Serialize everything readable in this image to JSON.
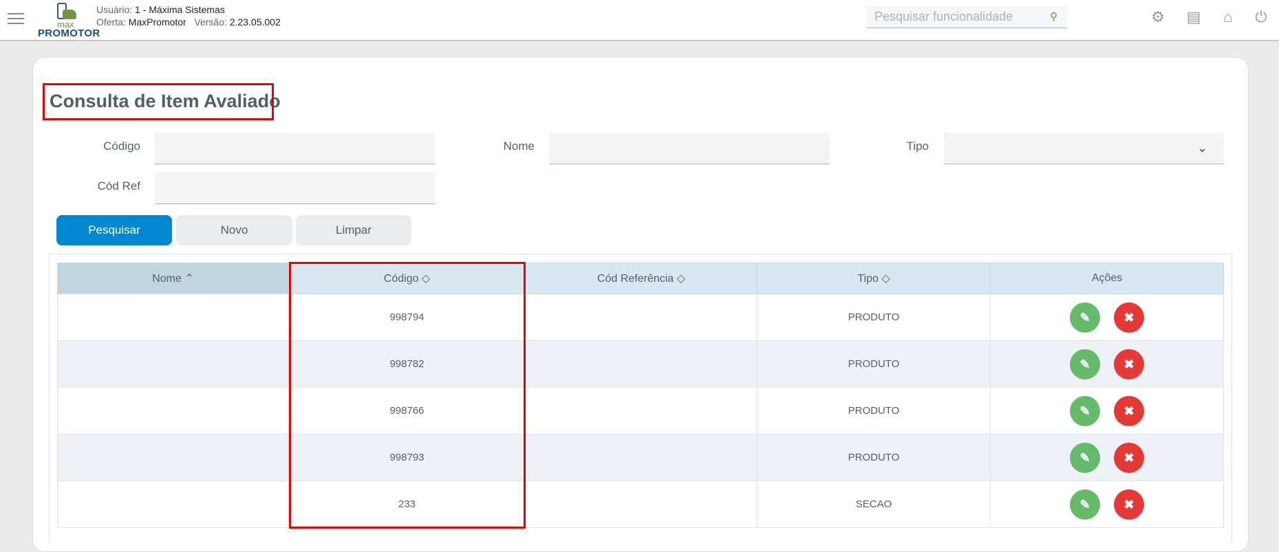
{
  "header": {
    "user_label": "Usuário:",
    "user_value": "1 - Máxima Sistemas",
    "offer_label": "Oferta:",
    "offer_value": "MaxPromotor",
    "version_label": "Versão:",
    "version_value": "2.23.05.002",
    "logo_top": "max",
    "logo_bottom": "PROMOTOR",
    "search_placeholder": "Pesquisar funcionalidade"
  },
  "page": {
    "title": "Consulta de Item Avaliado"
  },
  "form": {
    "codigo_label": "Código",
    "nome_label": "Nome",
    "tipo_label": "Tipo",
    "codref_label": "Cód Ref",
    "codigo_value": "",
    "nome_value": "",
    "tipo_value": "",
    "codref_value": ""
  },
  "buttons": {
    "search": "Pesquisar",
    "new": "Novo",
    "clear": "Limpar"
  },
  "table": {
    "columns": [
      "Nome",
      "Código",
      "Cód Referência",
      "Tipo",
      "Ações"
    ],
    "sort_column": "Nome",
    "sort_direction": "asc",
    "rows": [
      {
        "nome": "",
        "codigo": "998794",
        "codref": "",
        "tipo": "PRODUTO"
      },
      {
        "nome": "",
        "codigo": "998782",
        "codref": "",
        "tipo": "PRODUTO"
      },
      {
        "nome": "",
        "codigo": "998766",
        "codref": "",
        "tipo": "PRODUTO"
      },
      {
        "nome": "",
        "codigo": "998793",
        "codref": "",
        "tipo": "PRODUTO"
      },
      {
        "nome": "",
        "codigo": "233",
        "codref": "",
        "tipo": "SECAO"
      }
    ]
  },
  "colors": {
    "primary": "#0288d1",
    "edit": "#66bb6a",
    "delete": "#e53935",
    "highlight": "#ee0000"
  }
}
